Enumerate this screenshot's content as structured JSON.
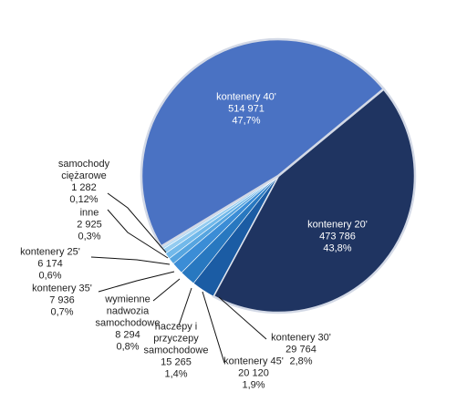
{
  "chart_data": {
    "type": "pie",
    "categories": [
      "kontenery 20'",
      "kontenery 30'",
      "kontenery 45'",
      "naczepy i przyczepy samochodowe",
      "wymienne nadwozia samochodowe",
      "kontenery 35'",
      "kontenery 25'",
      "inne",
      "samochody ciężarowe",
      "kontenery 40'"
    ],
    "values": [
      473786,
      29764,
      20120,
      15265,
      8294,
      7936,
      6174,
      2925,
      1282,
      514971
    ],
    "value_labels": [
      "473 786",
      "29 764",
      "20 120",
      "15 265",
      "8 294",
      "7 936",
      "6 174",
      "2 925",
      "1 282",
      "514 971"
    ],
    "percent_labels": [
      "43,8%",
      "2,8%",
      "1,9%",
      "1,4%",
      "0,8%",
      "0,7%",
      "0,6%",
      "0,3%",
      "0,12%",
      "47,7%"
    ],
    "colors": [
      "#1f3461",
      "#1b5ca4",
      "#2878c0",
      "#3b8dd6",
      "#56a5e0",
      "#72b9ea",
      "#93cbf0",
      "#b4daf4",
      "#a3abcd",
      "#4a72c3"
    ]
  }
}
